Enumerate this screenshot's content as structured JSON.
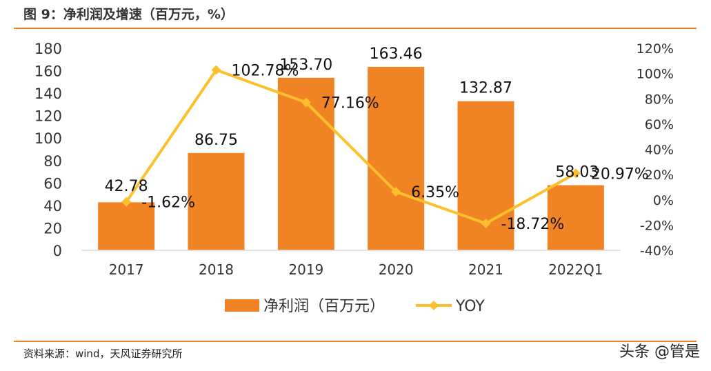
{
  "header": {
    "title": "图 9：净利润及增速（百万元，%）"
  },
  "footer": {
    "source": "资料来源：wind，天风证券研究所",
    "watermark": "头条 @管是"
  },
  "chart_data": {
    "type": "bar+line",
    "categories": [
      "2017",
      "2018",
      "2019",
      "2020",
      "2021",
      "2022Q1"
    ],
    "series": [
      {
        "name": "净利润（百万元）",
        "type": "bar",
        "axis": "left",
        "color": "#f08424",
        "values": [
          42.78,
          86.75,
          153.7,
          163.46,
          132.87,
          58.03
        ],
        "labels": [
          "42.78",
          "86.75",
          "153.70",
          "163.46",
          "132.87",
          "58.03"
        ]
      },
      {
        "name": "YOY",
        "type": "line",
        "axis": "right",
        "color": "#fcc02d",
        "values": [
          -1.62,
          102.78,
          77.16,
          6.35,
          -18.72,
          20.97
        ],
        "labels": [
          "-1.62%",
          "102.78%",
          "77.16%",
          "6.35%",
          "-18.72%",
          "20.97%"
        ]
      }
    ],
    "y_left": {
      "ylim": [
        0,
        180
      ],
      "ticks": [
        "0",
        "20",
        "40",
        "60",
        "80",
        "100",
        "120",
        "140",
        "160",
        "180"
      ]
    },
    "y_right": {
      "ylim": [
        -40,
        120
      ],
      "ticks": [
        "-40%",
        "-20%",
        "0%",
        "20%",
        "40%",
        "60%",
        "80%",
        "100%",
        "120%"
      ]
    },
    "legend": {
      "position": "bottom"
    },
    "grid": false
  }
}
